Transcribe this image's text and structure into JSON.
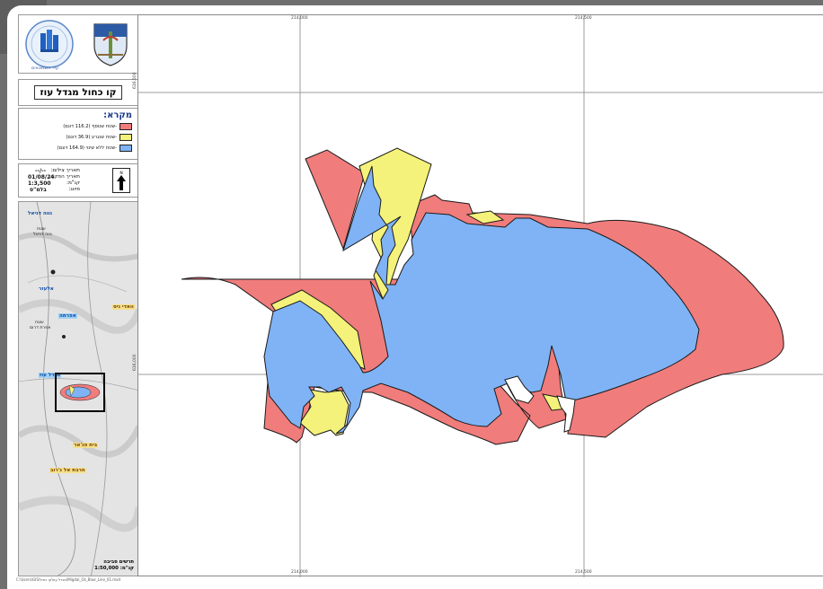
{
  "map": {
    "title": "קו כחול מגדל עוז",
    "logo_left_caption": "עיר חשמונאים",
    "legend": {
      "title": "מקרא:",
      "items": [
        {
          "label": "-שטח שנוסף (116.2 דונם)",
          "color": "#f07c7c"
        },
        {
          "label": "-שטח שנגרע (36.9 דונם)",
          "color": "#f4f27a"
        },
        {
          "label": "-שטח ללא שינוי (164.9 דונם)",
          "color": "#7fb3f5"
        }
      ]
    },
    "info": {
      "capture_date_label": "תאריך צילום:",
      "capture_date_value": "--/--",
      "prep_date_label": "תאריך הפקה:",
      "prep_date_value": "01/08/24",
      "scale_label": "קנ\"מ:",
      "scale_value": "1:3,500",
      "classification_label": "סיווג:",
      "classification_value": "בלמ\"ס"
    },
    "locator": {
      "places": [
        "נווה דניאל",
        "אלעזר",
        "וואדי ניס",
        "אפרתה",
        "מגדל עוז",
        "בית פג'אר",
        "חרבת אל ג'רוב"
      ],
      "small_labels": [
        "שטח",
        "נווה דניאל",
        "שטח",
        "אפרת דרום"
      ],
      "caption_line1": "תרשים סביבה",
      "caption_line2": "קנ\"מ: 1:50,000"
    },
    "grid_labels": {
      "top_left": "214,000",
      "top_right": "214,500",
      "bottom_left": "214,000",
      "bottom_right": "214,500",
      "left_top": "616,500",
      "left_bottom": "616,000"
    },
    "footer_path": "C:\\Users\\GIS\\מגדל עוז\\קו כחול\\Migdal_Oz_Blue_Line_01.mxd"
  }
}
